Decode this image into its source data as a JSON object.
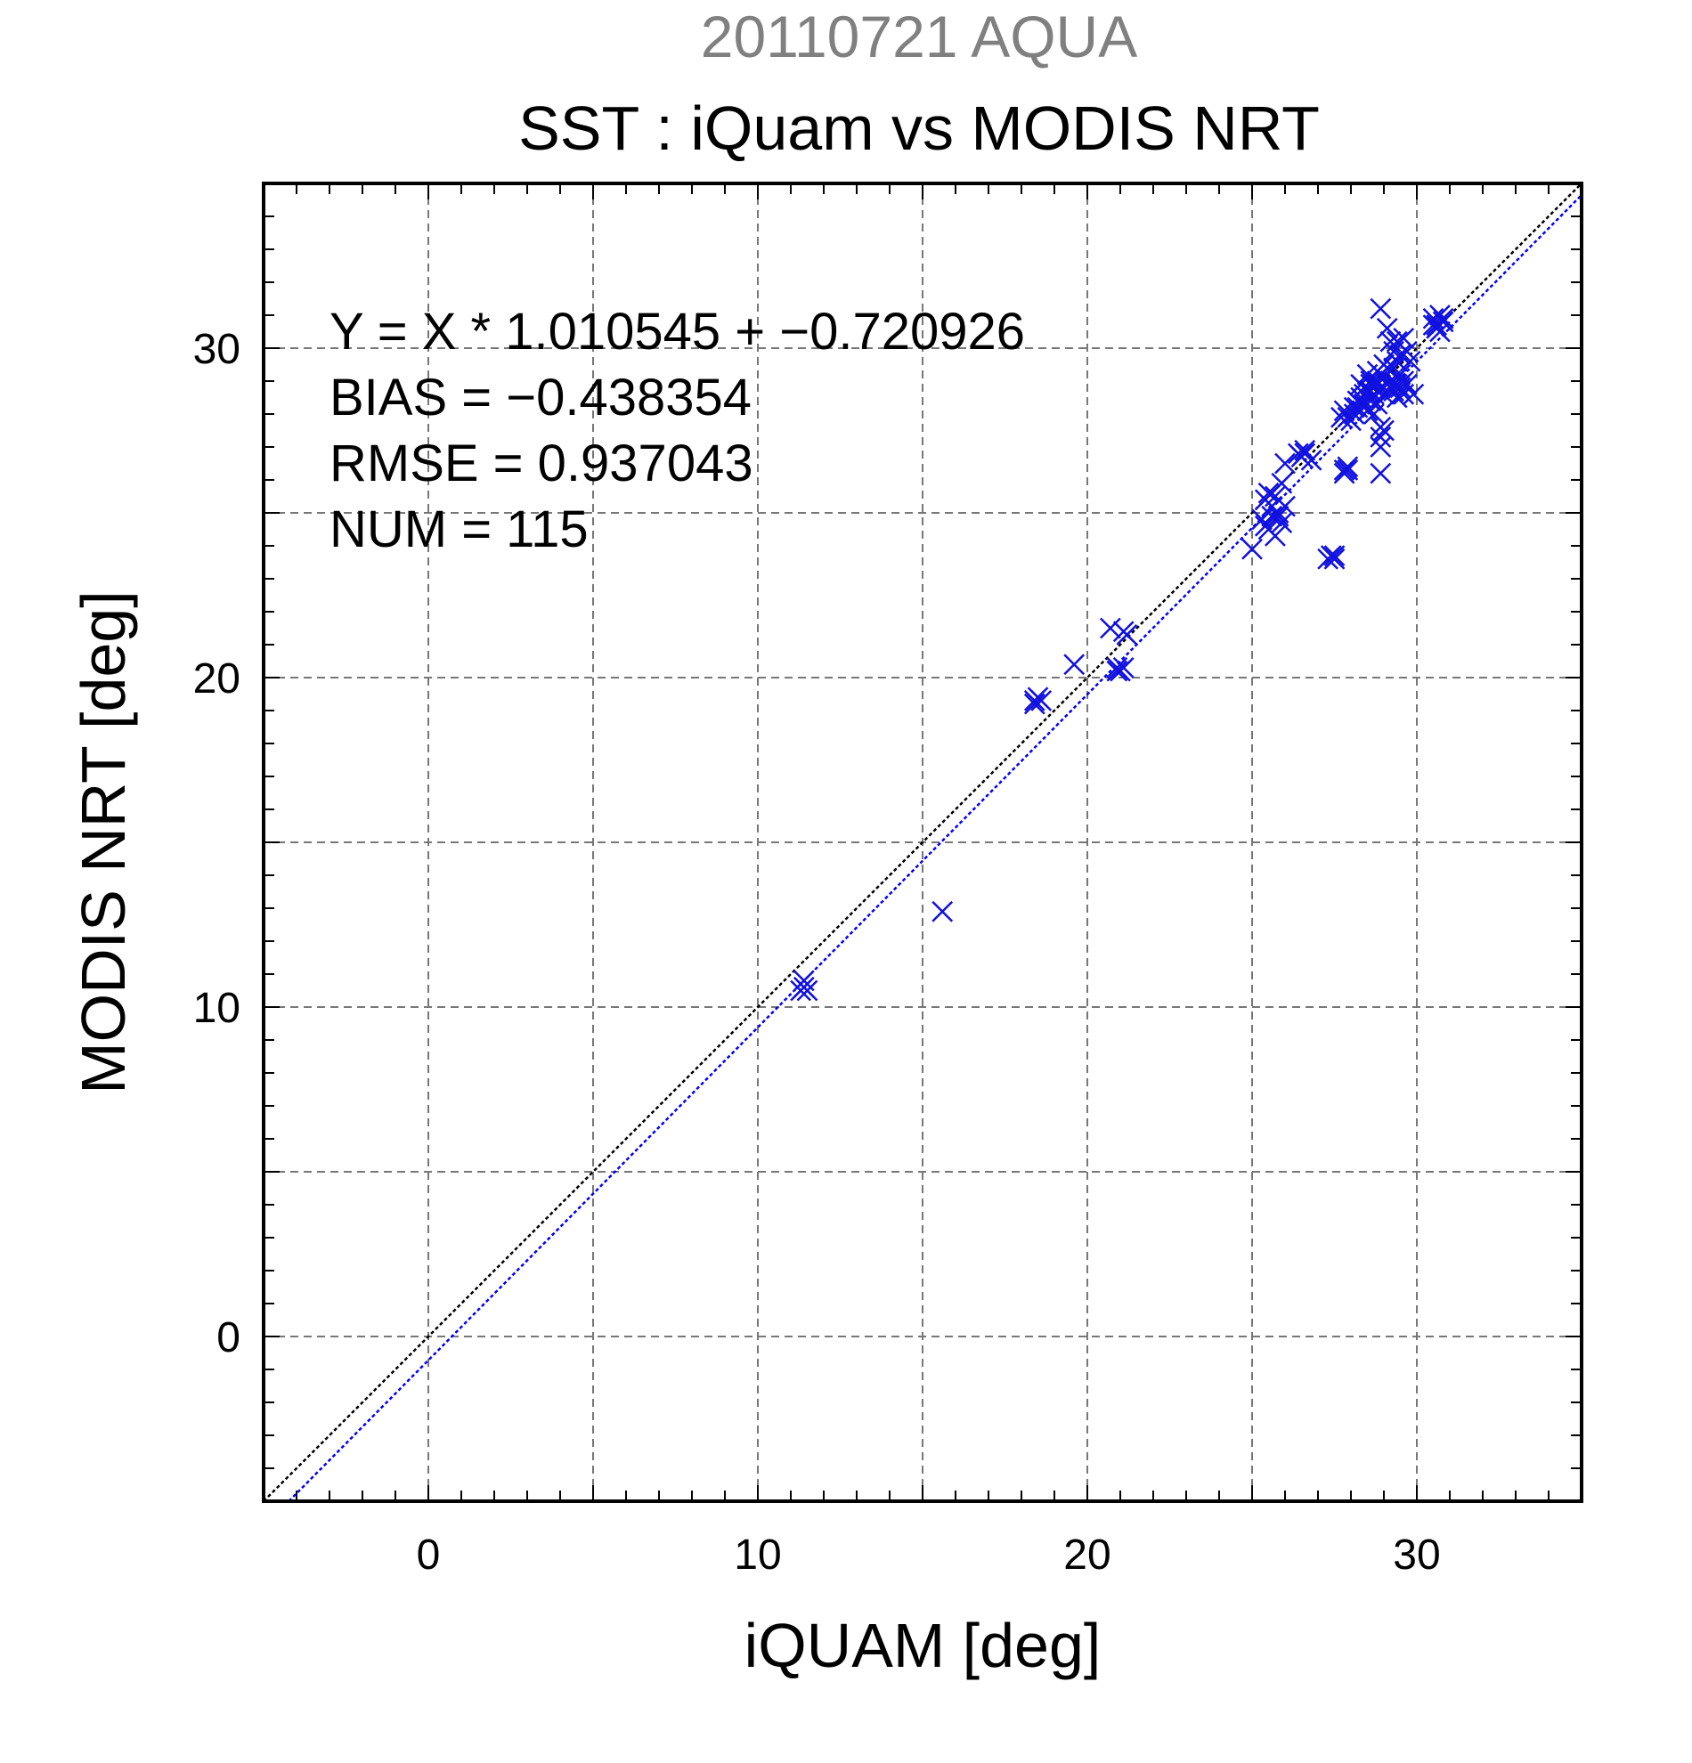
{
  "chart_data": {
    "type": "scatter",
    "title": "SST : iQuam vs MODIS NRT",
    "subtitle": "20110721 AQUA",
    "xlabel": "iQUAM [deg]",
    "ylabel": "MODIS NRT [deg]",
    "xlim": [
      -5,
      35
    ],
    "ylim": [
      -5,
      35
    ],
    "xticks": [
      0,
      10,
      20,
      30
    ],
    "yticks": [
      0,
      10,
      20,
      30
    ],
    "grid_step": 5,
    "grid": true,
    "stats": [
      "Y = X * 1.010545 + −0.720926",
      "BIAS = −0.438354",
      "RMSE = 0.937043",
      "NUM = 115"
    ],
    "reference_line": {
      "slope": 1,
      "intercept": 0
    },
    "fit_line": {
      "slope": 1.010545,
      "intercept": -0.720926
    },
    "colors": {
      "points": "#1010e0",
      "fit": "#0000ff",
      "reference": "#000000",
      "grid": "#777777",
      "subtitle": "#808080"
    },
    "points": [
      [
        11.3,
        10.5
      ],
      [
        11.4,
        10.8
      ],
      [
        11.5,
        10.5
      ],
      [
        11.4,
        10.6
      ],
      [
        15.6,
        12.9
      ],
      [
        18.4,
        19.2
      ],
      [
        18.5,
        19.4
      ],
      [
        18.6,
        19.3
      ],
      [
        18.4,
        19.3
      ],
      [
        19.6,
        20.4
      ],
      [
        20.7,
        21.5
      ],
      [
        21.1,
        21.4
      ],
      [
        21.2,
        21.3
      ],
      [
        20.9,
        20.3
      ],
      [
        21.0,
        20.2
      ],
      [
        21.1,
        20.3
      ],
      [
        20.9,
        20.2
      ],
      [
        25.0,
        23.9
      ],
      [
        25.3,
        24.8
      ],
      [
        25.5,
        24.5
      ],
      [
        25.7,
        24.3
      ],
      [
        25.6,
        24.9
      ],
      [
        25.4,
        25.4
      ],
      [
        25.5,
        25.6
      ],
      [
        25.7,
        25.5
      ],
      [
        25.8,
        25.0
      ],
      [
        25.9,
        24.7
      ],
      [
        26.0,
        25.2
      ],
      [
        25.6,
        25.2
      ],
      [
        25.9,
        25.9
      ],
      [
        26.0,
        26.5
      ],
      [
        26.4,
        26.8
      ],
      [
        26.6,
        26.9
      ],
      [
        26.8,
        26.6
      ],
      [
        26.5,
        26.7
      ],
      [
        25.4,
        24.6
      ],
      [
        25.8,
        24.9
      ],
      [
        27.4,
        23.7
      ],
      [
        27.5,
        23.6
      ],
      [
        27.3,
        23.6
      ],
      [
        27.5,
        23.7
      ],
      [
        27.8,
        26.3
      ],
      [
        27.9,
        26.4
      ],
      [
        27.8,
        26.2
      ],
      [
        27.9,
        26.3
      ],
      [
        27.8,
        28.1
      ],
      [
        27.9,
        27.9
      ],
      [
        28.0,
        27.8
      ],
      [
        28.1,
        28.0
      ],
      [
        27.7,
        27.9
      ],
      [
        28.2,
        28.2
      ],
      [
        28.3,
        28.5
      ],
      [
        28.4,
        28.3
      ],
      [
        28.5,
        28.7
      ],
      [
        28.6,
        28.4
      ],
      [
        28.3,
        28.9
      ],
      [
        28.5,
        29.2
      ],
      [
        28.6,
        29.0
      ],
      [
        28.7,
        28.6
      ],
      [
        28.8,
        28.3
      ],
      [
        28.9,
        28.8
      ],
      [
        29.0,
        29.1
      ],
      [
        28.8,
        29.3
      ],
      [
        28.5,
        28.1
      ],
      [
        28.7,
        28.0
      ],
      [
        28.9,
        27.6
      ],
      [
        28.9,
        27.3
      ],
      [
        29.0,
        27.5
      ],
      [
        28.9,
        27.0
      ],
      [
        28.9,
        26.2
      ],
      [
        28.9,
        31.2
      ],
      [
        29.1,
        30.6
      ],
      [
        29.2,
        30.2
      ],
      [
        29.3,
        29.9
      ],
      [
        29.4,
        30.2
      ],
      [
        29.5,
        29.8
      ],
      [
        29.6,
        30.3
      ],
      [
        29.7,
        29.9
      ],
      [
        29.8,
        29.6
      ],
      [
        29.2,
        29.0
      ],
      [
        29.3,
        28.7
      ],
      [
        29.4,
        28.9
      ],
      [
        29.5,
        29.2
      ],
      [
        29.6,
        28.6
      ],
      [
        29.7,
        28.9
      ],
      [
        29.9,
        28.6
      ],
      [
        29.1,
        29.4
      ],
      [
        29.2,
        28.8
      ],
      [
        29.0,
        29.5
      ],
      [
        29.3,
        29.4
      ],
      [
        29.5,
        28.8
      ],
      [
        29.4,
        28.5
      ],
      [
        29.6,
        29.0
      ],
      [
        29.1,
        28.9
      ],
      [
        29.0,
        28.6
      ],
      [
        28.6,
        28.9
      ],
      [
        28.4,
        28.6
      ],
      [
        28.2,
        28.4
      ],
      [
        28.1,
        28.2
      ],
      [
        29.2,
        29.3
      ],
      [
        30.5,
        30.9
      ],
      [
        30.6,
        30.7
      ],
      [
        30.7,
        31.0
      ],
      [
        30.8,
        30.8
      ],
      [
        30.6,
        30.6
      ],
      [
        30.7,
        30.5
      ],
      [
        30.5,
        30.7
      ],
      [
        30.8,
        30.9
      ],
      [
        26.6,
        26.8
      ],
      [
        28.4,
        28.8
      ],
      [
        28.6,
        28.7
      ],
      [
        28.8,
        29.0
      ],
      [
        29.4,
        29.6
      ],
      [
        28.3,
        28.3
      ],
      [
        28.7,
        28.8
      ]
    ]
  }
}
